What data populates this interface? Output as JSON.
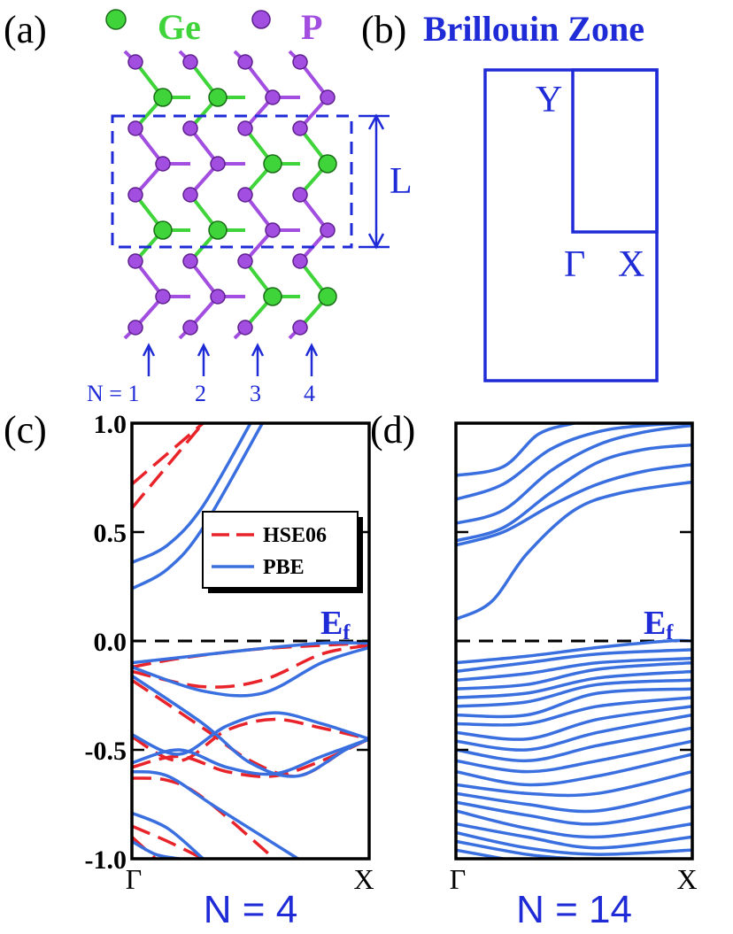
{
  "panels": {
    "a": {
      "letter": "(a)",
      "legend": [
        {
          "label": "Ge",
          "color": "#3fd43a"
        },
        {
          "label": "P",
          "color": "#a24ee0"
        }
      ],
      "cell_label": "L",
      "n_label": "N = 1",
      "n_values": [
        "2",
        "3",
        "4"
      ]
    },
    "b": {
      "letter": "(b)",
      "title": "Brillouin Zone",
      "points": {
        "Y": "Y",
        "Gamma": "Γ",
        "X": "X"
      }
    }
  },
  "colors": {
    "blue": "#1f2bd6",
    "hse": "#e8232a",
    "pbe": "#3a6fe0",
    "ge": "#3fd43a",
    "p": "#a24ee0"
  },
  "chart_data": [
    {
      "panel": "(c)",
      "type": "line",
      "title": "N = 4",
      "ylim": [
        -1.0,
        1.0
      ],
      "yticks": [
        "1.0",
        "0.5",
        "0.0",
        "-0.5",
        "-1.0"
      ],
      "xticks": [
        "Γ",
        "X"
      ],
      "fermi_label": "E",
      "fermi_sub": "f",
      "legend": [
        "HSE06",
        "PBE"
      ],
      "series": [
        {
          "name": "HSE06",
          "style": "dashed",
          "bands": [
            [
              [
                0,
                0.72
              ],
              [
                0.3,
                1.0
              ]
            ],
            [
              [
                0,
                0.61
              ],
              [
                0.3,
                1.0
              ]
            ],
            [
              [
                0,
                -0.12
              ],
              [
                0.2,
                -0.08
              ],
              [
                0.5,
                -0.04
              ],
              [
                0.8,
                -0.02
              ],
              [
                1,
                -0.01
              ]
            ],
            [
              [
                0,
                -0.14
              ],
              [
                0.3,
                -0.21
              ],
              [
                0.55,
                -0.18
              ],
              [
                0.8,
                -0.06
              ],
              [
                1,
                -0.02
              ]
            ],
            [
              [
                0,
                -0.18
              ],
              [
                0.3,
                -0.4
              ],
              [
                0.5,
                -0.55
              ],
              [
                0.7,
                -0.62
              ],
              [
                0.9,
                -0.5
              ],
              [
                1,
                -0.45
              ]
            ],
            [
              [
                0,
                -0.44
              ],
              [
                0.2,
                -0.55
              ],
              [
                0.4,
                -0.41
              ],
              [
                0.6,
                -0.36
              ],
              [
                0.8,
                -0.4
              ],
              [
                1,
                -0.45
              ]
            ],
            [
              [
                0,
                -0.58
              ],
              [
                0.2,
                -0.53
              ],
              [
                0.4,
                -0.6
              ],
              [
                0.6,
                -0.62
              ],
              [
                0.8,
                -0.55
              ],
              [
                1,
                -0.45
              ]
            ],
            [
              [
                0,
                -0.63
              ],
              [
                0.15,
                -0.64
              ],
              [
                0.3,
                -0.72
              ],
              [
                0.6,
                -1.0
              ]
            ],
            [
              [
                0,
                -0.85
              ],
              [
                0.15,
                -0.92
              ],
              [
                0.3,
                -1.0
              ]
            ],
            [
              [
                0,
                -0.9
              ],
              [
                0.1,
                -1.0
              ]
            ]
          ]
        },
        {
          "name": "PBE",
          "style": "solid",
          "bands": [
            [
              [
                0,
                0.36
              ],
              [
                0.15,
                0.44
              ],
              [
                0.3,
                0.62
              ],
              [
                0.5,
                1.0
              ]
            ],
            [
              [
                0,
                0.24
              ],
              [
                0.15,
                0.33
              ],
              [
                0.3,
                0.52
              ],
              [
                0.55,
                1.0
              ]
            ],
            [
              [
                0,
                -0.1
              ],
              [
                0.25,
                -0.07
              ],
              [
                0.5,
                -0.04
              ],
              [
                0.8,
                -0.01
              ],
              [
                1,
                -0.01
              ]
            ],
            [
              [
                0,
                -0.12
              ],
              [
                0.3,
                -0.23
              ],
              [
                0.55,
                -0.24
              ],
              [
                0.8,
                -0.1
              ],
              [
                1,
                -0.03
              ]
            ],
            [
              [
                0,
                -0.16
              ],
              [
                0.3,
                -0.38
              ],
              [
                0.5,
                -0.56
              ],
              [
                0.7,
                -0.62
              ],
              [
                0.9,
                -0.5
              ],
              [
                1,
                -0.45
              ]
            ],
            [
              [
                0,
                -0.43
              ],
              [
                0.2,
                -0.52
              ],
              [
                0.4,
                -0.39
              ],
              [
                0.6,
                -0.33
              ],
              [
                0.8,
                -0.38
              ],
              [
                1,
                -0.45
              ]
            ],
            [
              [
                0,
                -0.56
              ],
              [
                0.2,
                -0.5
              ],
              [
                0.4,
                -0.58
              ],
              [
                0.6,
                -0.61
              ],
              [
                0.8,
                -0.53
              ],
              [
                1,
                -0.45
              ]
            ],
            [
              [
                0,
                -0.6
              ],
              [
                0.15,
                -0.62
              ],
              [
                0.35,
                -0.76
              ],
              [
                0.7,
                -1.0
              ]
            ],
            [
              [
                0,
                -0.79
              ],
              [
                0.15,
                -0.86
              ],
              [
                0.3,
                -1.0
              ]
            ],
            [
              [
                0,
                -0.92
              ],
              [
                0.1,
                -0.98
              ],
              [
                0.2,
                -1.0
              ]
            ]
          ]
        }
      ]
    },
    {
      "panel": "(d)",
      "type": "line",
      "title": "N = 14",
      "ylim": [
        -1.0,
        1.0
      ],
      "yticks": [
        "1.0",
        "0.5",
        "0.0",
        "-0.5",
        "-1.0"
      ],
      "xticks": [
        "Γ",
        "X"
      ],
      "fermi_label": "E",
      "fermi_sub": "f",
      "legend": [],
      "series": [
        {
          "name": "PBE",
          "style": "solid",
          "bands": [
            [
              [
                0,
                0.1
              ],
              [
                0.15,
                0.18
              ],
              [
                0.3,
                0.4
              ],
              [
                0.5,
                0.6
              ],
              [
                0.7,
                0.68
              ],
              [
                1,
                0.73
              ]
            ],
            [
              [
                0,
                0.44
              ],
              [
                0.2,
                0.5
              ],
              [
                0.4,
                0.62
              ],
              [
                0.6,
                0.72
              ],
              [
                0.8,
                0.78
              ],
              [
                1,
                0.81
              ]
            ],
            [
              [
                0,
                0.46
              ],
              [
                0.2,
                0.52
              ],
              [
                0.4,
                0.68
              ],
              [
                0.6,
                0.82
              ],
              [
                0.8,
                0.88
              ],
              [
                1,
                0.9
              ]
            ],
            [
              [
                0,
                0.54
              ],
              [
                0.2,
                0.6
              ],
              [
                0.4,
                0.78
              ],
              [
                0.6,
                0.9
              ],
              [
                0.8,
                0.96
              ],
              [
                1,
                0.99
              ]
            ],
            [
              [
                0,
                0.65
              ],
              [
                0.2,
                0.72
              ],
              [
                0.4,
                0.88
              ],
              [
                0.6,
                0.96
              ],
              [
                0.8,
                0.99
              ],
              [
                1,
                1.0
              ]
            ],
            [
              [
                0,
                0.76
              ],
              [
                0.2,
                0.8
              ],
              [
                0.35,
                0.95
              ],
              [
                0.5,
                1.0
              ]
            ],
            [
              [
                0,
                -0.1
              ],
              [
                0.3,
                -0.07
              ],
              [
                0.6,
                -0.03
              ],
              [
                0.9,
                0.0
              ],
              [
                1,
                0.0
              ]
            ],
            [
              [
                0,
                -0.14
              ],
              [
                0.3,
                -0.1
              ],
              [
                0.6,
                -0.06
              ],
              [
                1,
                -0.04
              ]
            ],
            [
              [
                0,
                -0.18
              ],
              [
                0.3,
                -0.15
              ],
              [
                0.6,
                -0.1
              ],
              [
                1,
                -0.08
              ]
            ],
            [
              [
                0,
                -0.22
              ],
              [
                0.3,
                -0.2
              ],
              [
                0.6,
                -0.13
              ],
              [
                1,
                -0.1
              ]
            ],
            [
              [
                0,
                -0.26
              ],
              [
                0.3,
                -0.24
              ],
              [
                0.6,
                -0.17
              ],
              [
                1,
                -0.14
              ]
            ],
            [
              [
                0,
                -0.3
              ],
              [
                0.3,
                -0.28
              ],
              [
                0.6,
                -0.2
              ],
              [
                1,
                -0.18
              ]
            ],
            [
              [
                0,
                -0.34
              ],
              [
                0.3,
                -0.34
              ],
              [
                0.6,
                -0.24
              ],
              [
                1,
                -0.22
              ]
            ],
            [
              [
                0,
                -0.38
              ],
              [
                0.3,
                -0.38
              ],
              [
                0.6,
                -0.3
              ],
              [
                1,
                -0.26
              ]
            ],
            [
              [
                0,
                -0.42
              ],
              [
                0.3,
                -0.45
              ],
              [
                0.6,
                -0.36
              ],
              [
                1,
                -0.3
              ]
            ],
            [
              [
                0,
                -0.46
              ],
              [
                0.3,
                -0.5
              ],
              [
                0.6,
                -0.42
              ],
              [
                1,
                -0.34
              ]
            ],
            [
              [
                0,
                -0.5
              ],
              [
                0.3,
                -0.55
              ],
              [
                0.6,
                -0.48
              ],
              [
                1,
                -0.4
              ]
            ],
            [
              [
                0,
                -0.55
              ],
              [
                0.3,
                -0.6
              ],
              [
                0.6,
                -0.55
              ],
              [
                1,
                -0.46
              ]
            ],
            [
              [
                0,
                -0.6
              ],
              [
                0.3,
                -0.66
              ],
              [
                0.6,
                -0.62
              ],
              [
                1,
                -0.52
              ]
            ],
            [
              [
                0,
                -0.66
              ],
              [
                0.3,
                -0.7
              ],
              [
                0.6,
                -0.7
              ],
              [
                1,
                -0.6
              ]
            ],
            [
              [
                0,
                -0.7
              ],
              [
                0.3,
                -0.75
              ],
              [
                0.6,
                -0.78
              ],
              [
                1,
                -0.68
              ]
            ],
            [
              [
                0,
                -0.74
              ],
              [
                0.3,
                -0.8
              ],
              [
                0.6,
                -0.84
              ],
              [
                1,
                -0.76
              ]
            ],
            [
              [
                0,
                -0.78
              ],
              [
                0.3,
                -0.86
              ],
              [
                0.6,
                -0.9
              ],
              [
                1,
                -0.84
              ]
            ],
            [
              [
                0,
                -0.84
              ],
              [
                0.3,
                -0.9
              ],
              [
                0.6,
                -0.95
              ],
              [
                1,
                -0.9
              ]
            ],
            [
              [
                0,
                -0.88
              ],
              [
                0.3,
                -0.95
              ],
              [
                0.6,
                -0.98
              ],
              [
                1,
                -0.96
              ]
            ],
            [
              [
                0,
                -0.92
              ],
              [
                0.3,
                -0.98
              ],
              [
                0.5,
                -1.0
              ]
            ],
            [
              [
                0,
                -0.96
              ],
              [
                0.2,
                -1.0
              ]
            ]
          ]
        }
      ]
    }
  ]
}
